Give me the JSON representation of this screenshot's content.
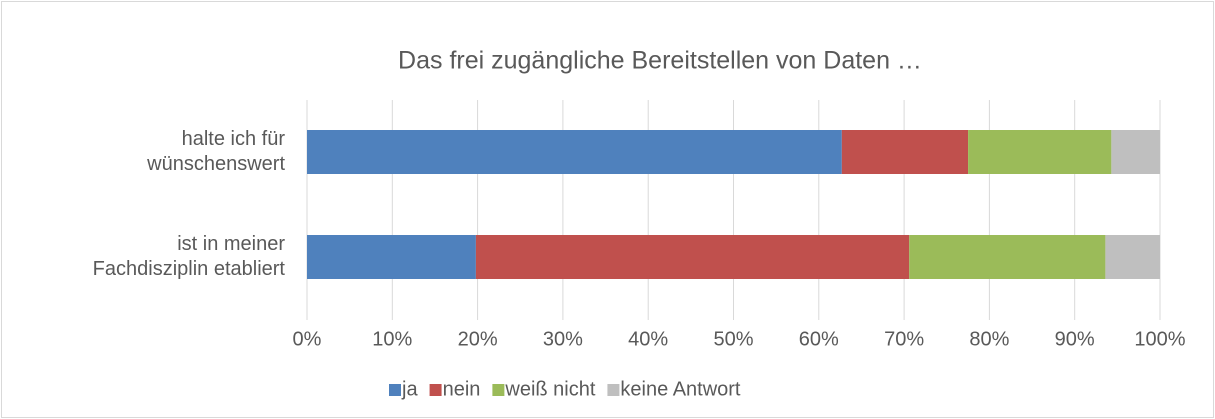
{
  "chart_data": {
    "type": "stacked-barh",
    "title": "Das frei zugängliche Bereitstellen von Daten …",
    "categories": [
      "halte ich für\nwünschenswert",
      "ist in meiner\nFachdisziplin etabliert"
    ],
    "series": [
      {
        "name": "ja",
        "color": "#4f81bd",
        "values": [
          62.7,
          19.8
        ]
      },
      {
        "name": "nein",
        "color": "#c0504d",
        "values": [
          14.8,
          50.8
        ]
      },
      {
        "name": "weiß nicht",
        "color": "#9bbb59",
        "values": [
          16.8,
          23.0
        ]
      },
      {
        "name": "keine Antwort",
        "color": "#bfbfbf",
        "values": [
          5.7,
          6.4
        ]
      }
    ],
    "xlim": [
      0,
      100
    ],
    "xticks": [
      {
        "value": 0,
        "label": "0%"
      },
      {
        "value": 10,
        "label": "10%"
      },
      {
        "value": 20,
        "label": "20%"
      },
      {
        "value": 30,
        "label": "30%"
      },
      {
        "value": 40,
        "label": "40%"
      },
      {
        "value": 50,
        "label": "50%"
      },
      {
        "value": 60,
        "label": "60%"
      },
      {
        "value": 70,
        "label": "70%"
      },
      {
        "value": 80,
        "label": "80%"
      },
      {
        "value": 90,
        "label": "90%"
      },
      {
        "value": 100,
        "label": "100%"
      }
    ],
    "grid": true,
    "legend": "bottom"
  }
}
